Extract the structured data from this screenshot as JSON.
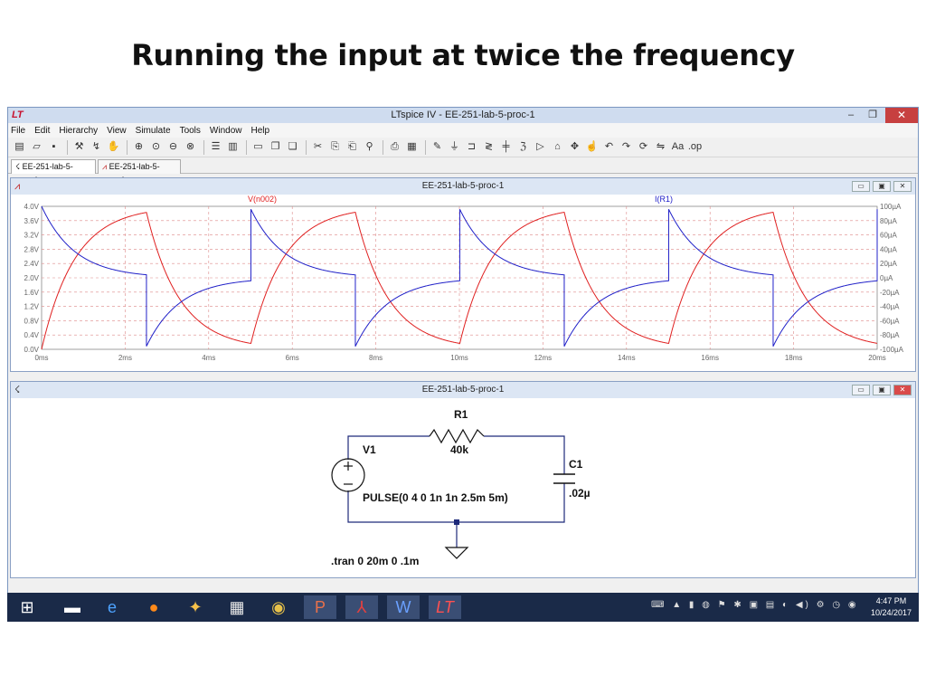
{
  "slide": {
    "title": "Running the input at twice the frequency"
  },
  "window": {
    "title": "LTspice IV - EE-251-lab-5-proc-1",
    "logo": "LT",
    "controls": {
      "minimize": "–",
      "maximize": "❐",
      "close": "✕"
    }
  },
  "menu": [
    "File",
    "Edit",
    "Hierarchy",
    "View",
    "Simulate",
    "Tools",
    "Window",
    "Help"
  ],
  "toolbar_icons": [
    "new-schematic-icon",
    "open-icon",
    "save-icon",
    "control-panel-icon",
    "run-icon",
    "halt-icon",
    "zoom-in-icon",
    "zoom-back-icon",
    "zoom-out-icon",
    "zoom-fit-icon",
    "tile-icon",
    "cascade-icon",
    "close-all-icon",
    "cut-icon",
    "copy-icon",
    "paste-icon",
    "find-icon",
    "print-icon",
    "print-preview-icon",
    "wire-icon",
    "ground-icon",
    "label-icon",
    "resistor-icon",
    "capacitor-icon",
    "inductor-icon",
    "diode-icon",
    "component-icon",
    "move-icon",
    "drag-icon",
    "undo-icon",
    "redo-icon",
    "rotate-icon",
    "mirror-icon",
    "text-icon",
    "spice-directive-icon"
  ],
  "doc_tabs": [
    {
      "label": "EE-251-lab-5-proc-1",
      "icon": "schematic-icon"
    },
    {
      "label": "EE-251-lab-5-proc-1",
      "icon": "waveform-icon"
    }
  ],
  "waveform_pane": {
    "title": "EE-251-lab-5-proc-1",
    "trace_labels": [
      "V(n002)",
      "I(R1)"
    ]
  },
  "schematic_pane": {
    "title": "EE-251-lab-5-proc-1"
  },
  "chart_data": {
    "type": "line",
    "x_unit": "ms",
    "xlim": [
      0,
      20
    ],
    "x_ticks": [
      "0ms",
      "2ms",
      "4ms",
      "6ms",
      "8ms",
      "10ms",
      "12ms",
      "14ms",
      "16ms",
      "18ms",
      "20ms"
    ],
    "left_ylim": [
      0,
      4.0
    ],
    "left_ticks": [
      "4.0V",
      "3.6V",
      "3.2V",
      "2.8V",
      "2.4V",
      "2.0V",
      "1.6V",
      "1.2V",
      "0.8V",
      "0.4V",
      "0.0V"
    ],
    "right_ylim": [
      -100,
      100
    ],
    "right_ticks": [
      "100µA",
      "80µA",
      "60µA",
      "40µA",
      "20µA",
      "0µA",
      "-20µA",
      "-40µA",
      "-60µA",
      "-80µA",
      "-100µA"
    ],
    "grid": true,
    "series": [
      {
        "name": "V(n002)",
        "axis": "left",
        "color": "#e02020",
        "model": {
          "Vhigh": 4,
          "tau_ms": 0.8,
          "period_ms": 5,
          "on_ms": 2.5
        }
      },
      {
        "name": "I(R1)",
        "axis": "right",
        "color": "#2020c8",
        "model": {
          "R_kohm": 40
        }
      }
    ]
  },
  "schematic": {
    "v1": {
      "name": "V1",
      "value": "PULSE(0 4 0 1n 1n 2.5m 5m)"
    },
    "r1": {
      "name": "R1",
      "value": "40k"
    },
    "c1": {
      "name": "C1",
      "value": ".02µ"
    },
    "directive": ".tran 0 20m 0 .1m"
  },
  "taskbar": {
    "apps": [
      "windows-start-icon",
      "file-explorer-icon",
      "internet-explorer-icon",
      "firefox-icon",
      "app-icon",
      "store-icon",
      "chrome-icon",
      "powerpoint-icon",
      "acrobat-icon",
      "word-icon",
      "ltspice-icon"
    ],
    "time": "4:47 PM",
    "date": "10/24/2017"
  }
}
